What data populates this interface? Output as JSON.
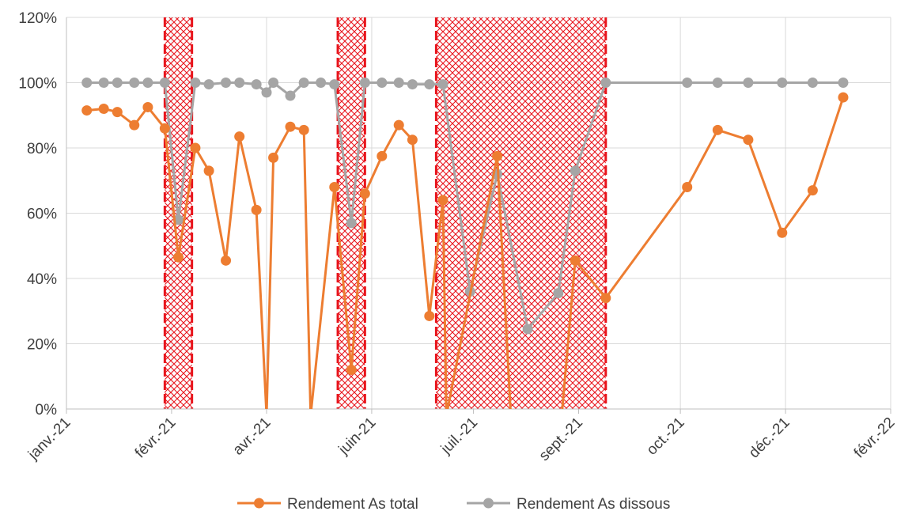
{
  "chart_data": {
    "type": "line",
    "y_ticks": [
      "0%",
      "20%",
      "40%",
      "60%",
      "80%",
      "100%",
      "120%"
    ],
    "y_tick_values": [
      0,
      20,
      40,
      60,
      80,
      100,
      120
    ],
    "ylim": [
      0,
      120
    ],
    "x_ticks": [
      {
        "label": "janv.-21",
        "date": "2021-01-01"
      },
      {
        "label": "févr.-21",
        "date": "2021-02-01"
      },
      {
        "label": "avr.-21",
        "date": "2021-03-01"
      },
      {
        "label": "juin-21",
        "date": "2021-04-01"
      },
      {
        "label": "juil.-21",
        "date": "2021-05-01"
      },
      {
        "label": "sept.-21",
        "date": "2021-06-01"
      },
      {
        "label": "oct.-21",
        "date": "2021-07-01"
      },
      {
        "label": "déc.-21",
        "date": "2021-08-01"
      },
      {
        "label": "févr.-22",
        "date": "2021-09-01"
      }
    ],
    "xlim": [
      "2021-01-01",
      "2021-09-01"
    ],
    "grid": true,
    "legend_position": "bottom",
    "shaded_periods": [
      {
        "start": "2021-01-30",
        "end": "2021-02-07",
        "color": "#e8141c"
      },
      {
        "start": "2021-03-22",
        "end": "2021-03-30",
        "color": "#e8141c"
      },
      {
        "start": "2021-04-20",
        "end": "2021-06-09",
        "color": "#e8141c"
      }
    ],
    "series": [
      {
        "name": "Rendement  As total",
        "color": "#ed7d31",
        "points": [
          {
            "x": "2021-01-07",
            "y": 91.5
          },
          {
            "x": "2021-01-12",
            "y": 92
          },
          {
            "x": "2021-01-16",
            "y": 91
          },
          {
            "x": "2021-01-21",
            "y": 87
          },
          {
            "x": "2021-01-25",
            "y": 92.5
          },
          {
            "x": "2021-01-30",
            "y": 86
          },
          {
            "x": "2021-02-03",
            "y": 46.5
          },
          {
            "x": "2021-02-08",
            "y": 80
          },
          {
            "x": "2021-02-12",
            "y": 73
          },
          {
            "x": "2021-02-17",
            "y": 45.5
          },
          {
            "x": "2021-02-21",
            "y": 83.5
          },
          {
            "x": "2021-02-26",
            "y": 61
          },
          {
            "x": "2021-03-01",
            "y": -2,
            "marker": false
          },
          {
            "x": "2021-03-03",
            "y": 77
          },
          {
            "x": "2021-03-08",
            "y": 86.5
          },
          {
            "x": "2021-03-12",
            "y": 85.5
          },
          {
            "x": "2021-03-14",
            "y": -2,
            "marker": false
          },
          {
            "x": "2021-03-21",
            "y": 68
          },
          {
            "x": "2021-03-26",
            "y": 12
          },
          {
            "x": "2021-03-30",
            "y": 66
          },
          {
            "x": "2021-04-04",
            "y": 77.5
          },
          {
            "x": "2021-04-09",
            "y": 87
          },
          {
            "x": "2021-04-13",
            "y": 82.5
          },
          {
            "x": "2021-04-18",
            "y": 28.5
          },
          {
            "x": "2021-04-22",
            "y": 64
          },
          {
            "x": "2021-04-23",
            "y": -2,
            "marker": false
          },
          {
            "x": "2021-05-08",
            "y": 77.5
          },
          {
            "x": "2021-05-12",
            "y": -2,
            "marker": false
          },
          {
            "x": "2021-05-27",
            "y": -2,
            "marker": false
          },
          {
            "x": "2021-05-31",
            "y": 45.5
          },
          {
            "x": "2021-06-09",
            "y": 34
          },
          {
            "x": "2021-07-03",
            "y": 68
          },
          {
            "x": "2021-07-12",
            "y": 85.5
          },
          {
            "x": "2021-07-21",
            "y": 82.5
          },
          {
            "x": "2021-07-31",
            "y": 54
          },
          {
            "x": "2021-08-09",
            "y": 67
          },
          {
            "x": "2021-08-18",
            "y": 95.5
          }
        ]
      },
      {
        "name": "Rendement  As dissous",
        "color": "#a5a5a5",
        "points": [
          {
            "x": "2021-01-07",
            "y": 100
          },
          {
            "x": "2021-01-12",
            "y": 100
          },
          {
            "x": "2021-01-16",
            "y": 100
          },
          {
            "x": "2021-01-21",
            "y": 100
          },
          {
            "x": "2021-01-25",
            "y": 100
          },
          {
            "x": "2021-01-30",
            "y": 100
          },
          {
            "x": "2021-02-03",
            "y": 58
          },
          {
            "x": "2021-02-08",
            "y": 100
          },
          {
            "x": "2021-02-12",
            "y": 99.5
          },
          {
            "x": "2021-02-17",
            "y": 100
          },
          {
            "x": "2021-02-21",
            "y": 100
          },
          {
            "x": "2021-02-26",
            "y": 99.5
          },
          {
            "x": "2021-03-01",
            "y": 97
          },
          {
            "x": "2021-03-03",
            "y": 100
          },
          {
            "x": "2021-03-08",
            "y": 96
          },
          {
            "x": "2021-03-12",
            "y": 100
          },
          {
            "x": "2021-03-17",
            "y": 100
          },
          {
            "x": "2021-03-21",
            "y": 99.5
          },
          {
            "x": "2021-03-26",
            "y": 57
          },
          {
            "x": "2021-03-30",
            "y": 100
          },
          {
            "x": "2021-04-04",
            "y": 100
          },
          {
            "x": "2021-04-09",
            "y": 100
          },
          {
            "x": "2021-04-13",
            "y": 99.5
          },
          {
            "x": "2021-04-18",
            "y": 99.5
          },
          {
            "x": "2021-04-22",
            "y": 99.5
          },
          {
            "x": "2021-04-30",
            "y": 36
          },
          {
            "x": "2021-05-08",
            "y": 72
          },
          {
            "x": "2021-05-17",
            "y": 24.5
          },
          {
            "x": "2021-05-26",
            "y": 35.5
          },
          {
            "x": "2021-05-31",
            "y": 73
          },
          {
            "x": "2021-06-09",
            "y": 100
          },
          {
            "x": "2021-07-03",
            "y": 100
          },
          {
            "x": "2021-07-12",
            "y": 100
          },
          {
            "x": "2021-07-21",
            "y": 100
          },
          {
            "x": "2021-07-31",
            "y": 100
          },
          {
            "x": "2021-08-09",
            "y": 100
          },
          {
            "x": "2021-08-18",
            "y": 100
          }
        ]
      }
    ]
  }
}
